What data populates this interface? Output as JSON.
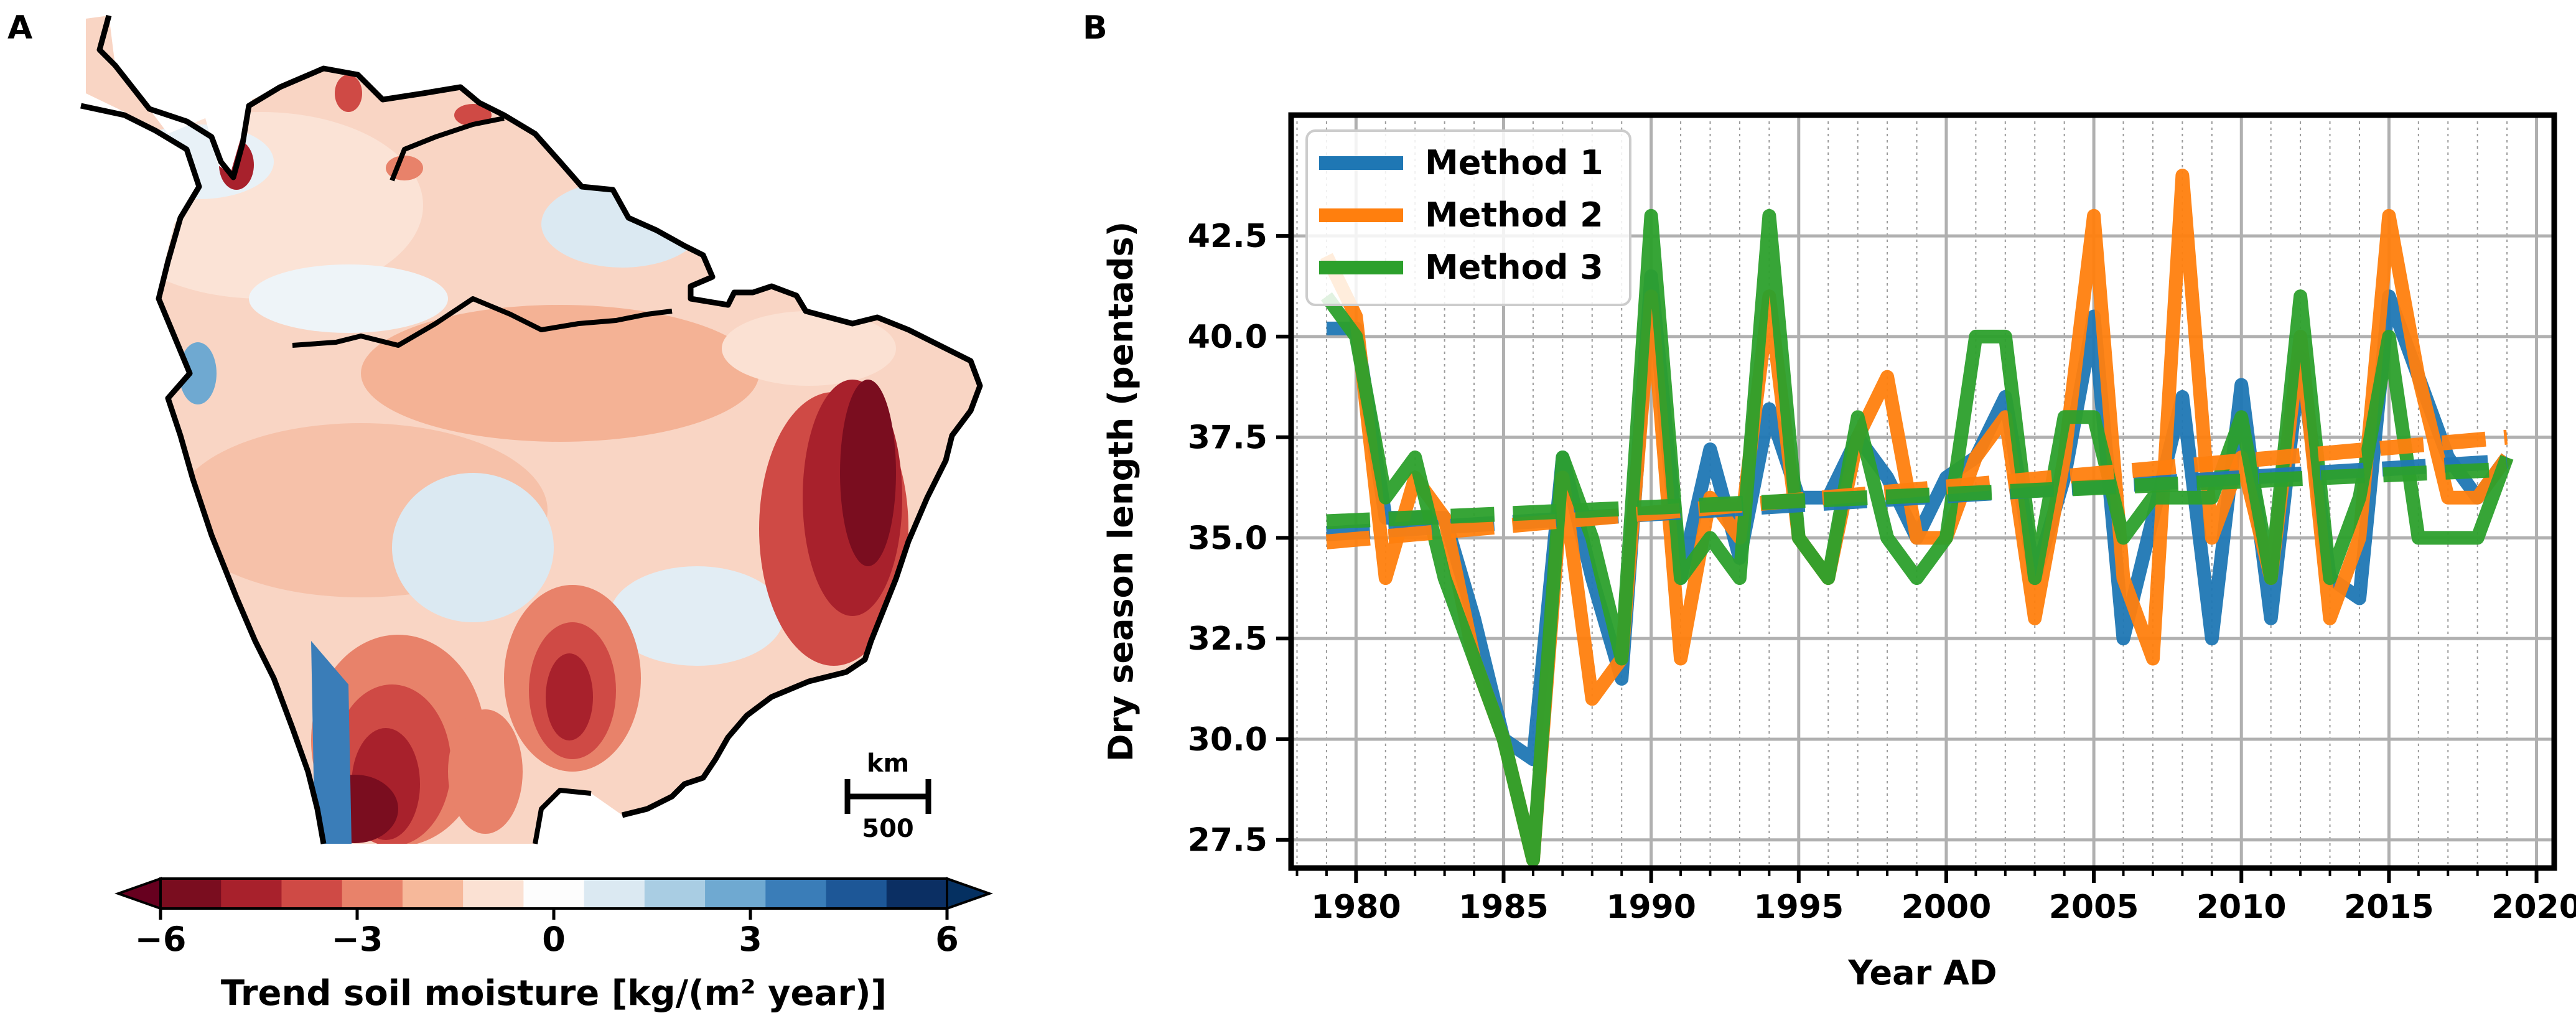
{
  "panels": {
    "a": {
      "label": "A",
      "scalebar": {
        "unit": "km",
        "value": "500"
      },
      "colorbar": {
        "label": "Trend soil moisture [kg/(m² year)]",
        "ticks": [
          "−6",
          "−3",
          "0",
          "3",
          "6"
        ],
        "colors": [
          "#7a0d1f",
          "#a8212c",
          "#cf4a45",
          "#e8826a",
          "#f6b89a",
          "#fbe1d3",
          "#fdfdfd",
          "#dbe9f2",
          "#a9cde3",
          "#6fa9d1",
          "#3a7db8",
          "#1d5797",
          "#0b2f63"
        ]
      }
    },
    "b": {
      "label": "B"
    }
  },
  "chart_data": {
    "type": "line",
    "title": "",
    "xlabel": "Year AD",
    "ylabel": "Dry season length (pentads)",
    "xlim": [
      1977.8,
      2020.6
    ],
    "ylim": [
      26.8,
      45.5
    ],
    "xticks": [
      1980,
      1985,
      1990,
      1995,
      2000,
      2005,
      2010,
      2015,
      2020
    ],
    "yticks": [
      27.5,
      30.0,
      32.5,
      35.0,
      37.5,
      40.0,
      42.5
    ],
    "grid": true,
    "legend_position": "top-left",
    "x": [
      1979,
      1980,
      1981,
      1982,
      1983,
      1984,
      1985,
      1986,
      1987,
      1988,
      1989,
      1990,
      1991,
      1992,
      1993,
      1994,
      1995,
      1996,
      1997,
      1998,
      1999,
      2000,
      2001,
      2002,
      2003,
      2004,
      2005,
      2006,
      2007,
      2008,
      2009,
      2010,
      2011,
      2012,
      2013,
      2014,
      2015,
      2016,
      2017,
      2018,
      2019
    ],
    "series": [
      {
        "name": "Method 1",
        "color": "#1f77b4",
        "values": [
          40.2,
          40.2,
          35.5,
          35.5,
          35.5,
          33.0,
          30.0,
          29.5,
          37.0,
          34.0,
          31.5,
          41.5,
          34.0,
          37.2,
          34.5,
          38.2,
          36.0,
          36.0,
          37.5,
          36.5,
          35.0,
          36.5,
          37.0,
          38.5,
          34.0,
          36.5,
          40.5,
          32.5,
          35.5,
          38.5,
          32.5,
          38.8,
          33.0,
          39.5,
          34.0,
          33.5,
          41.0,
          39.0,
          37.0,
          36.0,
          37.0
        ],
        "trend": [
          35.1,
          36.9
        ]
      },
      {
        "name": "Method 2",
        "color": "#ff7f0e",
        "values": [
          42.0,
          40.5,
          34.0,
          36.5,
          35.5,
          32.0,
          30.0,
          27.0,
          36.5,
          31.0,
          32.0,
          41.0,
          32.0,
          36.0,
          35.0,
          41.0,
          35.0,
          34.0,
          37.5,
          39.0,
          35.0,
          35.0,
          37.0,
          38.0,
          33.0,
          37.0,
          43.0,
          34.0,
          32.0,
          44.0,
          35.0,
          37.0,
          34.0,
          40.0,
          33.0,
          35.0,
          43.0,
          39.0,
          36.0,
          36.0,
          37.0
        ],
        "trend": [
          34.9,
          37.5
        ]
      },
      {
        "name": "Method 3",
        "color": "#2ca02c",
        "values": [
          41.0,
          40.0,
          36.0,
          37.0,
          34.0,
          32.0,
          30.0,
          27.0,
          37.0,
          35.0,
          32.0,
          43.0,
          34.0,
          35.0,
          34.0,
          43.0,
          35.0,
          34.0,
          38.0,
          35.0,
          34.0,
          35.0,
          40.0,
          40.0,
          34.0,
          38.0,
          38.0,
          35.0,
          36.0,
          36.0,
          36.0,
          38.0,
          34.0,
          41.0,
          34.0,
          36.0,
          40.0,
          35.0,
          35.0,
          35.0,
          37.0
        ],
        "trend": [
          35.4,
          36.7
        ]
      }
    ]
  }
}
